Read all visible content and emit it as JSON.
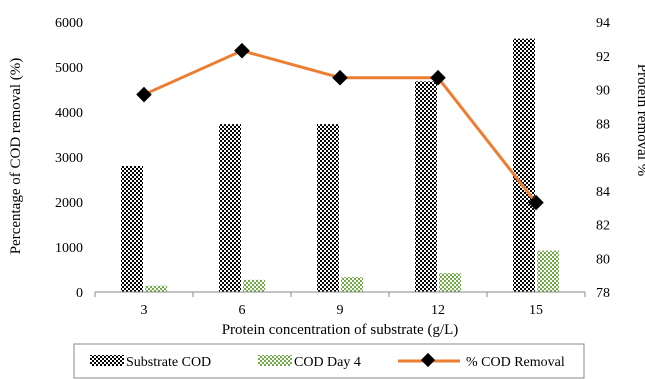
{
  "chart_data": {
    "type": "bar",
    "x_label": "Protein concentration of substrate (g/L)",
    "y_label_left": "Percentage of COD removal (%)",
    "y_label_right": "Protein removal %",
    "categories": [
      "3",
      "6",
      "9",
      "12",
      "15"
    ],
    "y_left_range": [
      0,
      6000
    ],
    "y_left_ticks": [
      "0",
      "1000",
      "2000",
      "3000",
      "4000",
      "5000",
      "6000"
    ],
    "y_right_range": [
      78,
      94
    ],
    "y_right_ticks": [
      "78",
      "80",
      "82",
      "84",
      "86",
      "88",
      "90",
      "92",
      "94"
    ],
    "grid": false,
    "legend_position": "bottom",
    "series": [
      {
        "name": "Substrate COD",
        "kind": "bar",
        "axis": "left",
        "pattern": "checker",
        "color": "#000000",
        "values": [
          2800,
          3730,
          3730,
          4680,
          5630
        ]
      },
      {
        "name": "COD Day 4",
        "kind": "bar",
        "axis": "left",
        "pattern": "green-dots",
        "color": "#70ad47",
        "values": [
          140,
          270,
          330,
          420,
          920
        ]
      },
      {
        "name": "% COD Removal",
        "kind": "line",
        "axis": "right",
        "marker": "diamond",
        "color": "#ed7d31",
        "values": [
          89.7,
          92.3,
          90.7,
          90.7,
          83.3
        ]
      }
    ]
  }
}
